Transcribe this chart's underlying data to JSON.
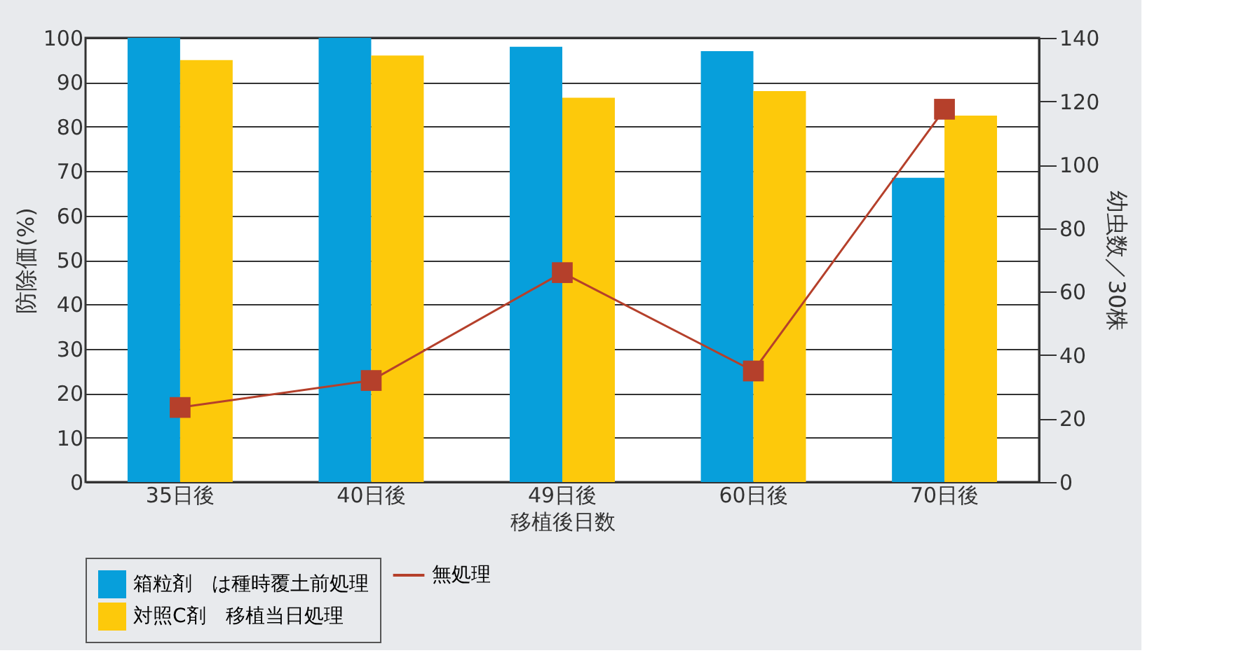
{
  "chart_data": {
    "type": "bar",
    "xlabel": "移植後日数",
    "ylabel": "防除価(%)",
    "y2label": "幼虫数／30株",
    "categories": [
      "35日後",
      "40日後",
      "49日後",
      "60日後",
      "70日後"
    ],
    "series": [
      {
        "name": "箱粒剤　は種時覆土前処理",
        "color": "#079fdb",
        "values": [
          100,
          100,
          98,
          97,
          68.5
        ]
      },
      {
        "name": "対照C剤　移植当日処理",
        "color": "#fdc90b",
        "values": [
          95,
          96,
          86.5,
          88,
          82.5
        ]
      },
      {
        "name": "無処理",
        "type": "line",
        "axis": "y2",
        "color": "#b5402b",
        "marker": "square",
        "values": [
          23.5,
          32,
          66,
          35,
          117.5
        ]
      }
    ],
    "ylim": [
      0,
      100
    ],
    "yticks": [
      0,
      10,
      20,
      30,
      40,
      50,
      60,
      70,
      80,
      90,
      100
    ],
    "y2lim": [
      0,
      140
    ],
    "y2ticks": [
      0,
      20,
      40,
      60,
      80,
      100,
      120,
      140
    ],
    "grid": "y",
    "legend": "bottom"
  }
}
